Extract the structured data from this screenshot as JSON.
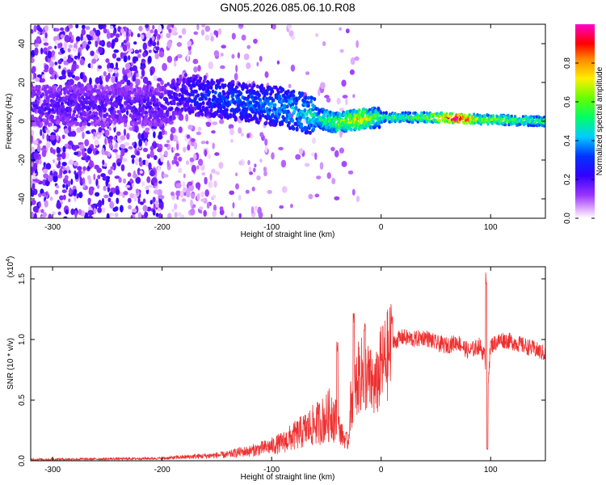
{
  "title": "GN05.2026.085.06.10.R08",
  "colors": {
    "signal_line": "#ee3030",
    "axes": "#000000",
    "background": "#ffffff"
  },
  "chart_data": [
    {
      "type": "heatmap",
      "name": "spectrogram",
      "title": "GN05.2026.085.06.10.R08",
      "xlabel": "Height of straight line (km)",
      "ylabel": "Frequency (Hz)",
      "xlim": [
        -320,
        150
      ],
      "ylim": [
        -50,
        50
      ],
      "xticks": [
        -300,
        -200,
        -100,
        0,
        100
      ],
      "xtick_labels": [
        "-300",
        "-200",
        "-100",
        "0",
        "100"
      ],
      "yticks": [
        -40,
        -20,
        0,
        20,
        40
      ],
      "ytick_labels": [
        "-40",
        "-20",
        "0",
        "20",
        "40"
      ],
      "colorbar": {
        "label": "Normalized spectral amplitude",
        "range": [
          0,
          1
        ],
        "ticks": [
          0.0,
          0.2,
          0.4,
          0.6,
          0.8
        ],
        "tick_labels": [
          "0.0",
          "0.2",
          "0.4",
          "0.6",
          "0.8"
        ],
        "colormap": [
          "#ffffff",
          "#cc66ff",
          "#6600ff",
          "#0000ff",
          "#00ccff",
          "#00ff66",
          "#99ff00",
          "#ffcc00",
          "#ff0000",
          "#ff00ff"
        ]
      },
      "description_points": {
        "ridge_centre_hz": [
          [
            -200,
            8
          ],
          [
            -180,
            14
          ],
          [
            -150,
            12
          ],
          [
            -120,
            9
          ],
          [
            -100,
            8
          ],
          [
            -80,
            6
          ],
          [
            -60,
            2
          ],
          [
            -40,
            -1
          ],
          [
            -20,
            1
          ],
          [
            0,
            2
          ],
          [
            50,
            2
          ],
          [
            90,
            1
          ],
          [
            150,
            0
          ]
        ],
        "ridge_amplitude": [
          [
            -200,
            0.2
          ],
          [
            -150,
            0.3
          ],
          [
            -100,
            0.35
          ],
          [
            -60,
            0.45
          ],
          [
            -40,
            0.55
          ],
          [
            -20,
            0.7
          ],
          [
            0,
            0.5
          ],
          [
            40,
            0.55
          ],
          [
            70,
            0.95
          ],
          [
            90,
            0.6
          ],
          [
            150,
            0.5
          ]
        ]
      }
    },
    {
      "type": "line",
      "name": "snr",
      "xlabel": "Height of straight line (km)",
      "ylabel": "SNR (10 * v/v)",
      "y_multiplier": "(x10",
      "y_multiplier_exp": "4",
      "xlim": [
        -320,
        150
      ],
      "ylim": [
        0,
        1.6
      ],
      "xticks": [
        -300,
        -200,
        -100,
        0,
        100
      ],
      "xtick_labels": [
        "-300",
        "-200",
        "-100",
        "0",
        "100"
      ],
      "yticks": [
        0.0,
        0.5,
        1.0,
        1.5
      ],
      "ytick_labels": [
        "0.0",
        "0.5",
        "1.0",
        "1.5"
      ],
      "series": [
        {
          "name": "SNR",
          "color": "#ee3030",
          "x": [
            -320,
            -250,
            -200,
            -180,
            -160,
            -140,
            -130,
            -120,
            -110,
            -100,
            -90,
            -80,
            -70,
            -60,
            -50,
            -45,
            -40,
            -35,
            -30,
            -28,
            -25,
            -20,
            -15,
            -10,
            -5,
            0,
            5,
            10,
            15,
            20,
            30,
            40,
            50,
            60,
            70,
            80,
            90,
            95,
            97,
            100,
            110,
            120,
            130,
            140,
            150
          ],
          "y": [
            0.01,
            0.015,
            0.02,
            0.03,
            0.04,
            0.05,
            0.07,
            0.08,
            0.1,
            0.12,
            0.15,
            0.2,
            0.25,
            0.3,
            0.35,
            0.4,
            0.3,
            0.2,
            0.15,
            0.45,
            0.55,
            0.7,
            0.72,
            0.65,
            0.6,
            0.78,
            0.85,
            0.95,
            1.0,
            1.02,
            1.0,
            1.02,
            0.97,
            0.95,
            0.98,
            0.9,
            0.95,
            0.85,
            0.6,
            0.95,
            1.0,
            0.98,
            0.95,
            0.92,
            0.88
          ],
          "spikes": [
            [
              -40,
              1.0
            ],
            [
              -25,
              1.25
            ],
            [
              -15,
              1.15
            ],
            [
              10,
              1.25
            ],
            [
              96,
              1.6
            ],
            [
              97,
              0.1
            ]
          ]
        }
      ]
    }
  ]
}
